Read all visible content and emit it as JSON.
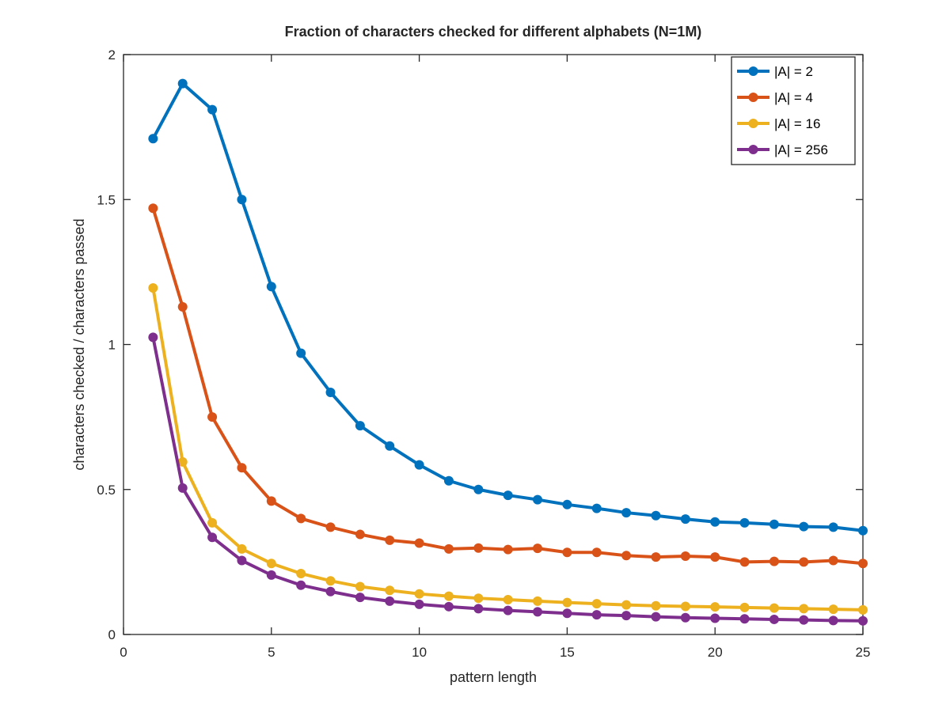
{
  "chart_data": {
    "type": "line",
    "title": "Fraction of characters checked for different alphabets (N=1M)",
    "xlabel": "pattern length",
    "ylabel": "characters checked / characters passed",
    "xlim": [
      0,
      25
    ],
    "ylim": [
      0,
      2
    ],
    "xticks": [
      0,
      5,
      10,
      15,
      20,
      25
    ],
    "xtick_labels": [
      "0",
      "5",
      "10",
      "15",
      "20",
      "25"
    ],
    "yticks": [
      0,
      0.5,
      1,
      1.5,
      2
    ],
    "ytick_labels": [
      "0",
      "0.5",
      "1",
      "1.5",
      "2"
    ],
    "grid": false,
    "legend_position": "top-right",
    "x": [
      1,
      2,
      3,
      4,
      5,
      6,
      7,
      8,
      9,
      10,
      11,
      12,
      13,
      14,
      15,
      16,
      17,
      18,
      19,
      20,
      21,
      22,
      23,
      24,
      25
    ],
    "series": [
      {
        "name": "|A| = 2",
        "color": "#0072BD",
        "values": [
          1.71,
          1.9,
          1.81,
          1.5,
          1.2,
          0.97,
          0.835,
          0.72,
          0.65,
          0.585,
          0.53,
          0.5,
          0.48,
          0.465,
          0.448,
          0.435,
          0.42,
          0.41,
          0.398,
          0.388,
          0.385,
          0.38,
          0.372,
          0.37,
          0.358
        ]
      },
      {
        "name": "|A| = 4",
        "color": "#D95319",
        "values": [
          1.47,
          1.13,
          0.75,
          0.575,
          0.46,
          0.4,
          0.37,
          0.345,
          0.325,
          0.315,
          0.295,
          0.298,
          0.293,
          0.297,
          0.283,
          0.283,
          0.272,
          0.267,
          0.27,
          0.267,
          0.25,
          0.252,
          0.25,
          0.255,
          0.245
        ]
      },
      {
        "name": "|A| = 16",
        "color": "#EDB120",
        "values": [
          1.195,
          0.595,
          0.385,
          0.295,
          0.245,
          0.21,
          0.185,
          0.165,
          0.152,
          0.14,
          0.132,
          0.125,
          0.12,
          0.115,
          0.11,
          0.106,
          0.102,
          0.099,
          0.097,
          0.095,
          0.093,
          0.091,
          0.089,
          0.087,
          0.085
        ]
      },
      {
        "name": "|A| = 256",
        "color": "#7E2F8E",
        "values": [
          1.025,
          0.505,
          0.335,
          0.255,
          0.205,
          0.17,
          0.148,
          0.128,
          0.115,
          0.104,
          0.096,
          0.089,
          0.083,
          0.078,
          0.073,
          0.068,
          0.065,
          0.061,
          0.058,
          0.056,
          0.054,
          0.052,
          0.05,
          0.048,
          0.047
        ]
      }
    ]
  }
}
